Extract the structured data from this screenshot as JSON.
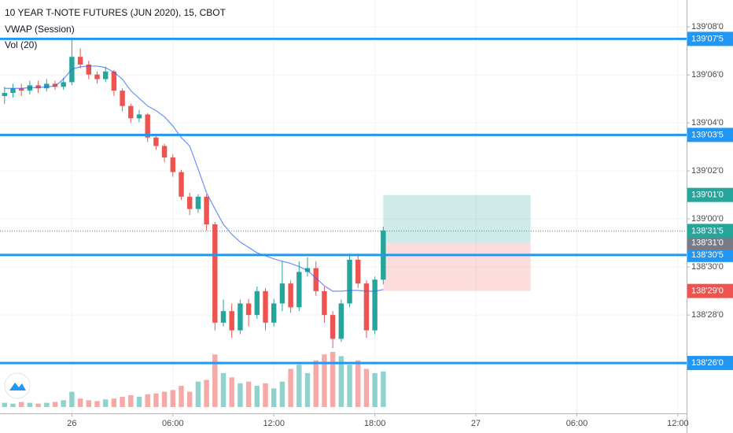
{
  "chart_data": {
    "type": "candlestick",
    "title": "10 YEAR T-NOTE FUTURES (JUN 2020), 15, CBOT",
    "indicator": "VWAP (Session)",
    "volume_label": "Vol (20)",
    "x": [
      -4,
      -3.5,
      -3,
      -2.5,
      -2,
      -1.5,
      -1,
      -0.5,
      0,
      0.5,
      1,
      1.5,
      2,
      2.5,
      3,
      3.5,
      4,
      4.5,
      5,
      5.5,
      6,
      6.5,
      7,
      7.5,
      8,
      8.5,
      9,
      9.5,
      10,
      10.5,
      11,
      11.5,
      12,
      12.5,
      13,
      13.5,
      14,
      14.5,
      15,
      15.5,
      16,
      16.5,
      17,
      17.5,
      18,
      18.5
    ],
    "open": [
      139.16,
      139.164,
      139.17,
      139.167,
      139.174,
      139.17,
      139.176,
      139.172,
      139.178,
      139.211,
      139.201,
      139.188,
      139.182,
      139.192,
      139.167,
      139.147,
      139.131,
      139.136,
      139.106,
      139.095,
      139.08,
      139.061,
      139.029,
      139.013,
      139.029,
      138.993,
      138.865,
      138.88,
      138.855,
      138.89,
      138.875,
      138.906,
      138.865,
      138.89,
      138.916,
      138.885,
      138.931,
      138.936,
      138.906,
      138.875,
      138.844,
      138.89,
      138.947,
      138.916,
      138.855,
      138.921
    ],
    "high": [
      139.172,
      139.176,
      139.176,
      139.18,
      139.18,
      139.182,
      139.18,
      139.184,
      139.236,
      139.222,
      139.206,
      139.192,
      139.198,
      139.194,
      139.17,
      139.15,
      139.142,
      139.138,
      139.11,
      139.098,
      139.084,
      139.064,
      139.034,
      139.032,
      139.032,
      138.996,
      138.895,
      138.89,
      138.895,
      138.896,
      138.912,
      138.91,
      138.896,
      138.945,
      138.92,
      138.945,
      138.95,
      138.945,
      138.912,
      138.88,
      138.895,
      138.955,
      138.955,
      138.92,
      138.925,
      138.99
    ],
    "low": [
      139.15,
      139.158,
      139.16,
      139.162,
      139.164,
      139.166,
      139.168,
      139.168,
      139.174,
      139.196,
      139.182,
      139.176,
      139.178,
      139.16,
      139.14,
      139.125,
      139.126,
      139.1,
      139.09,
      139.074,
      139.055,
      139.025,
      139.005,
      139.008,
      138.985,
      138.855,
      138.86,
      138.845,
      138.85,
      138.86,
      138.87,
      138.855,
      138.86,
      138.88,
      138.878,
      138.88,
      138.925,
      138.9,
      138.865,
      138.832,
      138.84,
      138.885,
      138.91,
      138.845,
      138.85,
      138.915
    ],
    "close": [
      139.164,
      139.17,
      139.167,
      139.174,
      139.17,
      139.176,
      139.172,
      139.178,
      139.211,
      139.201,
      139.188,
      139.182,
      139.192,
      139.167,
      139.147,
      139.131,
      139.136,
      139.106,
      139.095,
      139.08,
      139.061,
      139.029,
      139.013,
      139.029,
      138.993,
      138.865,
      138.88,
      138.855,
      138.89,
      138.875,
      138.906,
      138.865,
      138.89,
      138.916,
      138.885,
      138.931,
      138.936,
      138.906,
      138.875,
      138.844,
      138.89,
      138.947,
      138.916,
      138.855,
      138.921,
      138.985
    ],
    "vwap": [
      139.17,
      139.17,
      139.17,
      139.171,
      139.171,
      139.172,
      139.173,
      139.182,
      139.195,
      139.198,
      139.199,
      139.199,
      139.197,
      139.191,
      139.182,
      139.167,
      139.157,
      139.147,
      139.141,
      139.133,
      139.121,
      139.106,
      139.095,
      139.065,
      139.034,
      139.013,
      138.993,
      138.98,
      138.97,
      138.963,
      138.956,
      138.952,
      138.948,
      138.945,
      138.942,
      138.938,
      138.933,
      138.923,
      138.913,
      138.906,
      138.906,
      138.907,
      138.907,
      138.906,
      138.906,
      138.908
    ],
    "volume": [
      5,
      4,
      6,
      5,
      4,
      5,
      6,
      8,
      18,
      10,
      8,
      7,
      9,
      10,
      12,
      14,
      12,
      15,
      16,
      18,
      20,
      25,
      18,
      30,
      32,
      62,
      40,
      35,
      28,
      30,
      25,
      28,
      22,
      30,
      45,
      50,
      40,
      55,
      62,
      65,
      60,
      50,
      55,
      45,
      40,
      42
    ],
    "up_color": "#26a69a",
    "down_color": "#ef5350",
    "vwap_color": "#2962ff",
    "level_color": "#2196f3",
    "ylim": [
      138.747,
      139.285
    ],
    "yticks": [
      {
        "value": 139.25,
        "label": "139'08'0"
      },
      {
        "value": 139.1875,
        "label": "139'06'0"
      },
      {
        "value": 139.125,
        "label": "139'04'0"
      },
      {
        "value": 139.0625,
        "label": "139'02'0"
      },
      {
        "value": 139.0,
        "label": "139'00'0"
      },
      {
        "value": 138.9375,
        "label": "138'30'0"
      },
      {
        "value": 138.875,
        "label": "138'28'0"
      }
    ],
    "xlim": [
      -4.27,
      36.52
    ],
    "xticks": [
      {
        "value": 0,
        "label": "26"
      },
      {
        "value": 6,
        "label": "06:00"
      },
      {
        "value": 12,
        "label": "12:00"
      },
      {
        "value": 18,
        "label": "18:00"
      },
      {
        "value": 24,
        "label": "27"
      },
      {
        "value": 30,
        "label": "06:00"
      },
      {
        "value": 36,
        "label": "12:00"
      }
    ],
    "levels": [
      {
        "value": 139.234375,
        "label": "139'07'5"
      },
      {
        "value": 139.109375,
        "label": "139'03'5"
      },
      {
        "value": 138.953125,
        "label": "138'30'5"
      },
      {
        "value": 138.8125,
        "label": "138'26'0"
      }
    ],
    "last_price": {
      "value": 138.984375,
      "label": "138'31'5"
    },
    "position": {
      "x": [
        18.5,
        27.25
      ],
      "entry": {
        "value": 138.96875,
        "label": "138'31'0"
      },
      "target": {
        "value": 139.03125,
        "label": "139'01'0"
      },
      "stop": {
        "value": 138.90625,
        "label": "138'29'0"
      }
    },
    "grid": true
  }
}
